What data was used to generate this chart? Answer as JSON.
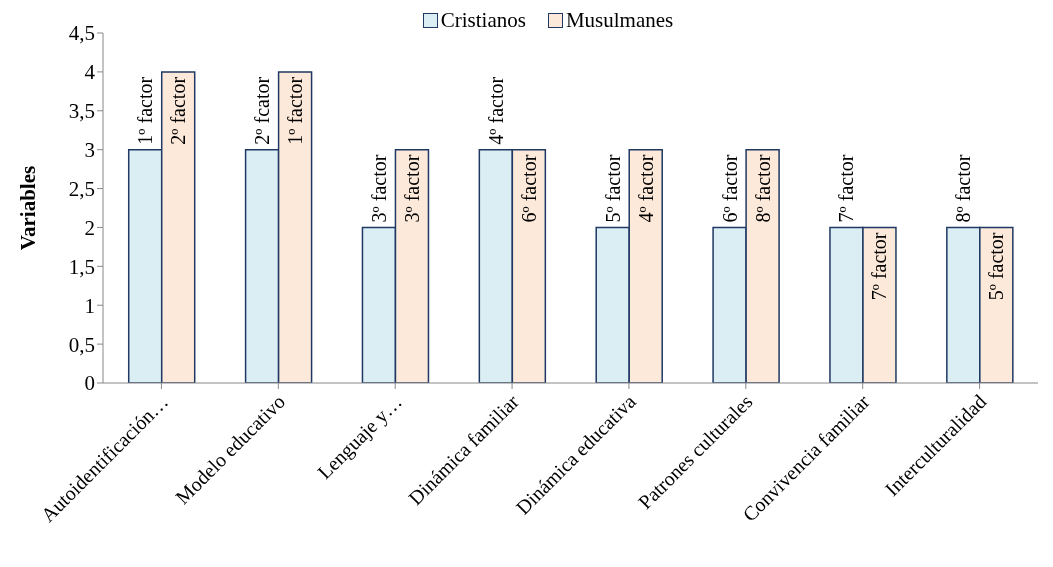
{
  "chart_data": {
    "type": "bar",
    "ylabel": "Variables",
    "categories": [
      "Autoidentificación…",
      "Modelo educativo",
      "Lenguaje y…",
      "Dinámica familiar",
      "Dinámica educativa",
      "Patrones culturales",
      "Convivencia familiar",
      "Interculturalidad"
    ],
    "series": [
      {
        "name": "Cristianos",
        "color": "#dbeef4",
        "values": [
          3,
          3,
          2,
          3,
          2,
          2,
          2,
          2
        ]
      },
      {
        "name": "Musulmanes",
        "color": "#fde9d9",
        "values": [
          4,
          4,
          3,
          3,
          3,
          3,
          2,
          2
        ]
      }
    ],
    "annotations": [
      {
        "text": "1º factor",
        "x": "Autoidentificación…",
        "y": 3
      },
      {
        "text": "2º factor",
        "x": "Autoidentificación…",
        "y": 4
      },
      {
        "text": "2º fcator",
        "x": "Modelo educativo",
        "y": 3
      },
      {
        "text": "1º factor",
        "x": "Modelo educativo",
        "y": 4
      },
      {
        "text": "3º factor",
        "x": "Lenguaje y…",
        "y": 2
      },
      {
        "text": "3º factor",
        "x": "Lenguaje y…",
        "y": 3
      },
      {
        "text": "4º factor",
        "x": "Dinámica familiar",
        "y": 3
      },
      {
        "text": "6º factor",
        "x": "Dinámica familiar",
        "y": 3
      },
      {
        "text": "5º factor",
        "x": "Dinámica educativa",
        "y": 2
      },
      {
        "text": "4º factor",
        "x": "Dinámica educativa",
        "y": 3
      },
      {
        "text": "6º factor",
        "x": "Patrones culturales",
        "y": 2
      },
      {
        "text": "8º factor",
        "x": "Patrones culturales",
        "y": 3
      },
      {
        "text": "7º factor",
        "x": "Convivencia familiar",
        "y": 2
      },
      {
        "text": "7º factor",
        "x": "Convivencia familiar",
        "y": 2
      },
      {
        "text": "8º factor",
        "x": "Interculturalidad",
        "y": 2
      },
      {
        "text": "5º factor",
        "x": "Interculturalidad",
        "y": 2
      }
    ],
    "ylim": [
      0,
      4.5
    ],
    "yticks": [
      0,
      {
        "value": 0.5,
        "label": "0,5"
      },
      1,
      {
        "value": 1.5,
        "label": "1,5"
      },
      2,
      {
        "value": 2.5,
        "label": "2,5"
      },
      3,
      {
        "value": 3.5,
        "label": "3,5"
      },
      4,
      {
        "value": 4.5,
        "label": "4,5"
      }
    ],
    "grid": false,
    "legend": "top"
  }
}
